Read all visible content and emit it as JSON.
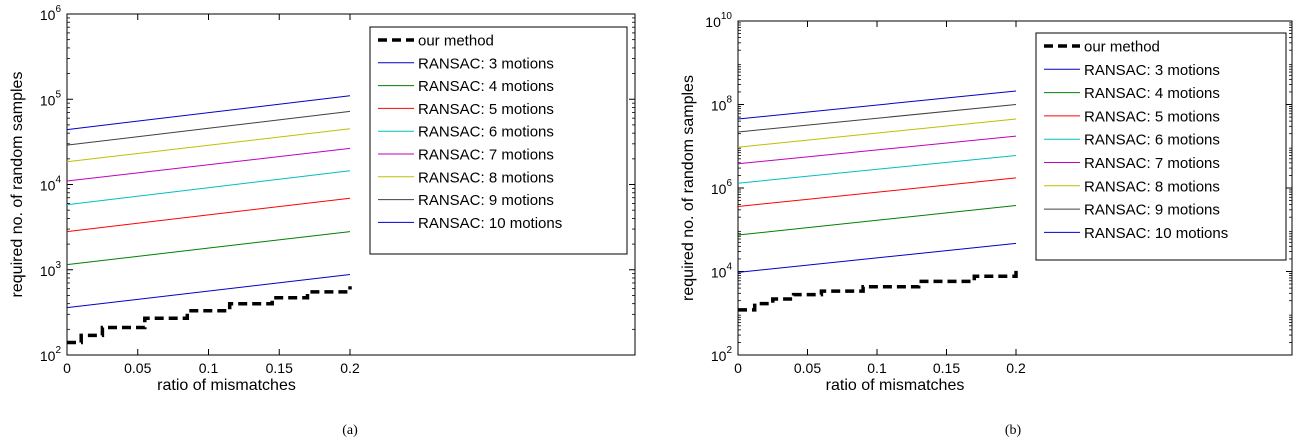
{
  "chart_data": [
    {
      "type": "line",
      "panel_label": "(a)",
      "xlabel": "ratio of mismatches",
      "ylabel": "required no. of random samples",
      "xlim": [
        0,
        0.2
      ],
      "x_ticks": [
        {
          "value": 0,
          "label": "0"
        },
        {
          "value": 0.05,
          "label": "0.05"
        },
        {
          "value": 0.1,
          "label": "0.1"
        },
        {
          "value": 0.15,
          "label": "0.15"
        },
        {
          "value": 0.2,
          "label": "0.2"
        }
      ],
      "y_scale": "log",
      "ylim": [
        100,
        1000000
      ],
      "y_ticks": [
        {
          "value": 100,
          "base": "10",
          "exp": "2"
        },
        {
          "value": 1000,
          "base": "10",
          "exp": "3"
        },
        {
          "value": 10000,
          "base": "10",
          "exp": "4"
        },
        {
          "value": 100000,
          "base": "10",
          "exp": "5"
        },
        {
          "value": 1000000,
          "base": "10",
          "exp": "6"
        }
      ],
      "legend_position": "top-right",
      "series": [
        {
          "name": "our method",
          "color": "#000000",
          "dashed": true,
          "step": true,
          "x": [
            0,
            0.01,
            0.025,
            0.055,
            0.085,
            0.115,
            0.145,
            0.17,
            0.2
          ],
          "y": [
            140,
            170,
            210,
            270,
            330,
            400,
            470,
            550,
            640
          ]
        },
        {
          "name": "RANSAC: 3 motions",
          "color": "#0000cc",
          "x": [
            0,
            0.2
          ],
          "y": [
            360,
            880
          ]
        },
        {
          "name": "RANSAC: 4 motions",
          "color": "#008000",
          "x": [
            0,
            0.2
          ],
          "y": [
            1150,
            2800
          ]
        },
        {
          "name": "RANSAC: 5 motions",
          "color": "#ff0000",
          "x": [
            0,
            0.2
          ],
          "y": [
            2800,
            6900
          ]
        },
        {
          "name": "RANSAC: 6 motions",
          "color": "#00bfbf",
          "x": [
            0,
            0.2
          ],
          "y": [
            5800,
            14500
          ]
        },
        {
          "name": "RANSAC: 7 motions",
          "color": "#bf00bf",
          "x": [
            0,
            0.2
          ],
          "y": [
            11000,
            26500
          ]
        },
        {
          "name": "RANSAC: 8 motions",
          "color": "#bfbf00",
          "x": [
            0,
            0.2
          ],
          "y": [
            18500,
            45000
          ]
        },
        {
          "name": "RANSAC: 9 motions",
          "color": "#404040",
          "x": [
            0,
            0.2
          ],
          "y": [
            29000,
            72000
          ]
        },
        {
          "name": "RANSAC: 10 motions",
          "color": "#0000cc",
          "x": [
            0,
            0.2
          ],
          "y": [
            44000,
            110000
          ]
        }
      ]
    },
    {
      "type": "line",
      "panel_label": "(b)",
      "xlabel": "ratio of mismatches",
      "ylabel": "required no. of random samples",
      "xlim": [
        0,
        0.2
      ],
      "x_ticks": [
        {
          "value": 0,
          "label": "0"
        },
        {
          "value": 0.05,
          "label": "0.05"
        },
        {
          "value": 0.1,
          "label": "0.1"
        },
        {
          "value": 0.15,
          "label": "0.15"
        },
        {
          "value": 0.2,
          "label": "0.2"
        }
      ],
      "y_scale": "log",
      "ylim": [
        100,
        10000000000
      ],
      "y_ticks": [
        {
          "value": 100,
          "base": "10",
          "exp": "2"
        },
        {
          "value": 10000,
          "base": "10",
          "exp": "4"
        },
        {
          "value": 1000000,
          "base": "10",
          "exp": "6"
        },
        {
          "value": 100000000,
          "base": "10",
          "exp": "8"
        },
        {
          "value": 10000000000,
          "base": "10",
          "exp": "10"
        }
      ],
      "legend_position": "top-right",
      "series": [
        {
          "name": "our method",
          "color": "#000000",
          "dashed": true,
          "step": true,
          "x": [
            0,
            0.012,
            0.025,
            0.04,
            0.06,
            0.09,
            0.13,
            0.17,
            0.2
          ],
          "y": [
            1200,
            1700,
            2200,
            2800,
            3400,
            4300,
            5800,
            7700,
            10500
          ]
        },
        {
          "name": "RANSAC: 3 motions",
          "color": "#0000cc",
          "x": [
            0,
            0.2
          ],
          "y": [
            9500,
            47000
          ]
        },
        {
          "name": "RANSAC: 4 motions",
          "color": "#008000",
          "x": [
            0,
            0.2
          ],
          "y": [
            75000,
            380000
          ]
        },
        {
          "name": "RANSAC: 5 motions",
          "color": "#ff0000",
          "x": [
            0,
            0.2
          ],
          "y": [
            360000,
            1750000
          ]
        },
        {
          "name": "RANSAC: 6 motions",
          "color": "#00bfbf",
          "x": [
            0,
            0.2
          ],
          "y": [
            1300000,
            6000000
          ]
        },
        {
          "name": "RANSAC: 7 motions",
          "color": "#bf00bf",
          "x": [
            0,
            0.2
          ],
          "y": [
            3800000,
            17500000
          ]
        },
        {
          "name": "RANSAC: 8 motions",
          "color": "#bfbf00",
          "x": [
            0,
            0.2
          ],
          "y": [
            9500000,
            45000000
          ]
        },
        {
          "name": "RANSAC: 9 motions",
          "color": "#404040",
          "x": [
            0,
            0.2
          ],
          "y": [
            22000000,
            100000000
          ]
        },
        {
          "name": "RANSAC: 10 motions",
          "color": "#0000cc",
          "x": [
            0,
            0.2
          ],
          "y": [
            45000000,
            210000000
          ]
        }
      ]
    }
  ]
}
